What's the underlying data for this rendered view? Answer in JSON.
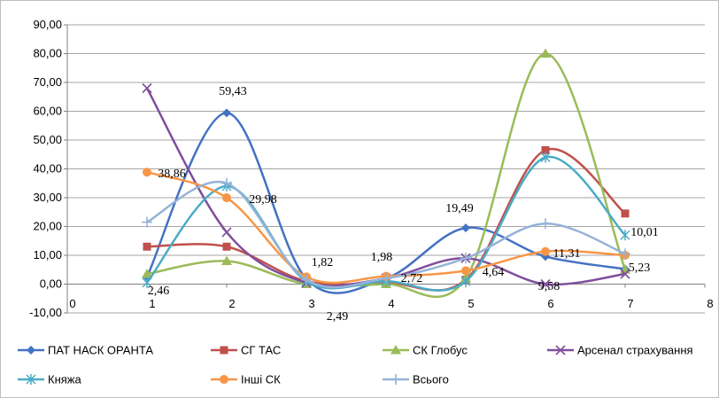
{
  "chart_data": {
    "type": "line",
    "title": "",
    "xlabel": "",
    "ylabel": "",
    "xlim": [
      0,
      8
    ],
    "ylim": [
      -10,
      90
    ],
    "x_ticks": [
      "0",
      "1",
      "2",
      "3",
      "4",
      "5",
      "6",
      "7",
      "8"
    ],
    "y_ticks": [
      "-10,00",
      "0,00",
      "10,00",
      "20,00",
      "30,00",
      "40,00",
      "50,00",
      "60,00",
      "70,00",
      "80,00",
      "90,00"
    ],
    "grid": "horizontal",
    "legend_position": "bottom",
    "x": [
      1,
      2,
      3,
      4,
      5,
      6,
      7
    ],
    "series": [
      {
        "name": "ПАТ НАСК ОРАНТА",
        "color": "#4472C4",
        "marker": "diamond",
        "values": [
          2.46,
          59.43,
          1.82,
          1.98,
          19.49,
          9.58,
          5.23
        ]
      },
      {
        "name": "СГ ТАС",
        "color": "#C0504D",
        "marker": "square",
        "values": [
          13.0,
          13.0,
          1.0,
          0.5,
          1.5,
          46.5,
          24.5
        ]
      },
      {
        "name": "СК Глобус",
        "color": "#9BBB59",
        "marker": "triangle",
        "values": [
          3.5,
          8.0,
          0.0,
          0.0,
          2.0,
          80.0,
          5.0
        ]
      },
      {
        "name": "Арсенал страхування",
        "color": "#7F4E9E",
        "marker": "x",
        "values": [
          68.0,
          18.0,
          0.5,
          2.0,
          9.0,
          0.0,
          3.5
        ]
      },
      {
        "name": "Княжа",
        "color": "#4BACC6",
        "marker": "star",
        "values": [
          0.5,
          34.0,
          1.0,
          1.0,
          1.0,
          44.0,
          17.0
        ]
      },
      {
        "name": "Інші СК",
        "color": "#F79646",
        "marker": "circle",
        "values": [
          38.86,
          29.98,
          2.49,
          2.72,
          4.64,
          11.31,
          10.01
        ]
      },
      {
        "name": "Всього",
        "color": "#95B3D7",
        "marker": "plus",
        "values": [
          21.5,
          35.0,
          1.5,
          2.0,
          9.0,
          21.0,
          10.5
        ]
      }
    ],
    "data_labels": [
      "2,46",
      "59,43",
      "1,82",
      "1,98",
      "19,49",
      "9,58",
      "5,23",
      "38,86",
      "29,98",
      "2,49",
      "2,72",
      "4,64",
      "11,31",
      "10,01"
    ]
  }
}
